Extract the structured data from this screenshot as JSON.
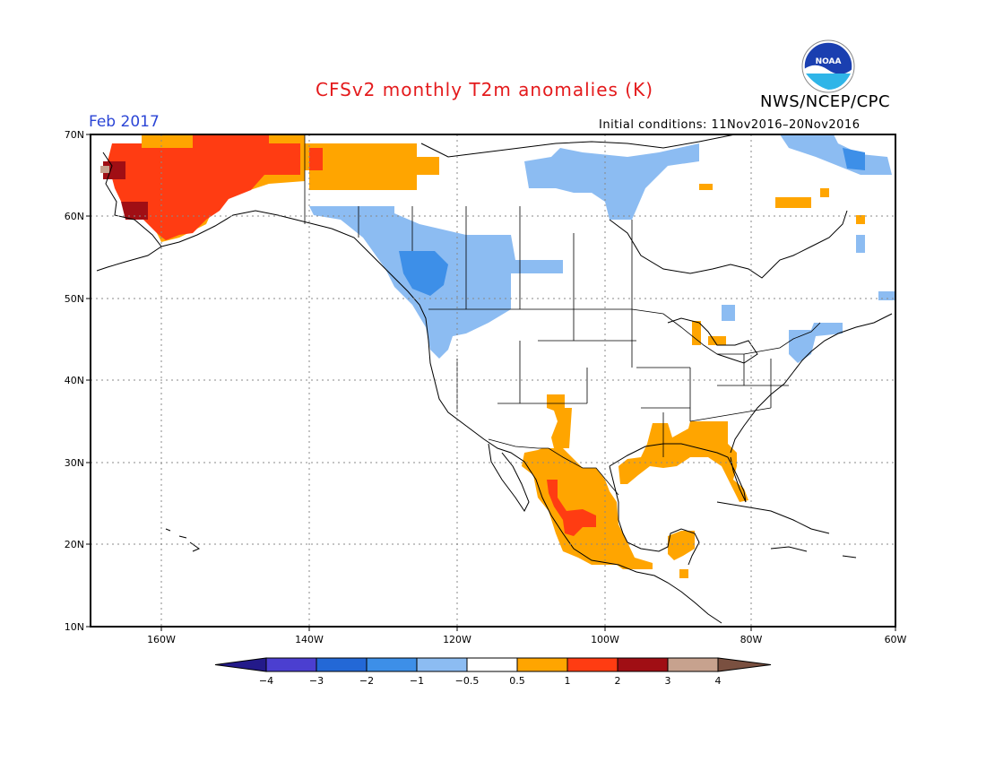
{
  "header": {
    "title": "CFSv2 monthly T2m anomalies (K)",
    "period": "Feb 2017",
    "initial_conditions": "Initial conditions: 11Nov2016–20Nov2016",
    "agency": "NWS/NCEP/CPC",
    "logo_text": "NOAA"
  },
  "colors": {
    "title": "#e41a1c",
    "period": "#2b45d6",
    "lt4": "#231a8a",
    "m4_m3": "#4b3fd0",
    "m3_m2": "#2368d6",
    "m2_m1": "#3d8fe8",
    "m1_m05": "#8cbcf2",
    "neutral": "#ffffff",
    "p05_p1": "#ffa500",
    "p1_p2": "#ff3c12",
    "p2_p3": "#a00e14",
    "p3_p4": "#c7a28e",
    "gt4": "#7a5040"
  },
  "map": {
    "lat_labels": [
      "70N",
      "60N",
      "50N",
      "40N",
      "30N",
      "20N",
      "10N"
    ],
    "lon_labels": [
      "160W",
      "140W",
      "120W",
      "100W",
      "80W",
      "60W"
    ],
    "gridlines": "dotted",
    "anomaly_regions": [
      {
        "region": "Alaska",
        "category": "p1_p2"
      },
      {
        "region": "Alaska west coast",
        "category": "p2_p3"
      },
      {
        "region": "Yukon / northern Canada",
        "category": "p05_p1"
      },
      {
        "region": "British Columbia / Pacific Northwest",
        "category": "m1_m05"
      },
      {
        "region": "Central BC",
        "category": "m2_m1"
      },
      {
        "region": "Northern Canada (Nunavut)",
        "category": "m1_m05"
      },
      {
        "region": "Baffin Island",
        "category": "m1_m05"
      },
      {
        "region": "Mexico",
        "category": "p05_p1"
      },
      {
        "region": "Sierra Madre Occidental",
        "category": "p1_p2"
      },
      {
        "region": "US Gulf Coast",
        "category": "p05_p1"
      },
      {
        "region": "Florida",
        "category": "p05_p1"
      },
      {
        "region": "Yucatan",
        "category": "p05_p1"
      },
      {
        "region": "New Mexico / West Texas",
        "category": "p05_p1"
      },
      {
        "region": "Great Lakes",
        "category": "p05_p1"
      },
      {
        "region": "New England / Maritimes",
        "category": "m1_m05"
      }
    ]
  },
  "colorbar": {
    "labels": [
      "−4",
      "−3",
      "−2",
      "−1",
      "−0.5",
      "0.5",
      "1",
      "2",
      "3",
      "4"
    ],
    "categories": [
      "m4_m3",
      "m3_m2",
      "m2_m1",
      "m1_m05",
      "neutral",
      "p05_p1",
      "p1_p2",
      "p2_p3",
      "p3_p4"
    ]
  }
}
